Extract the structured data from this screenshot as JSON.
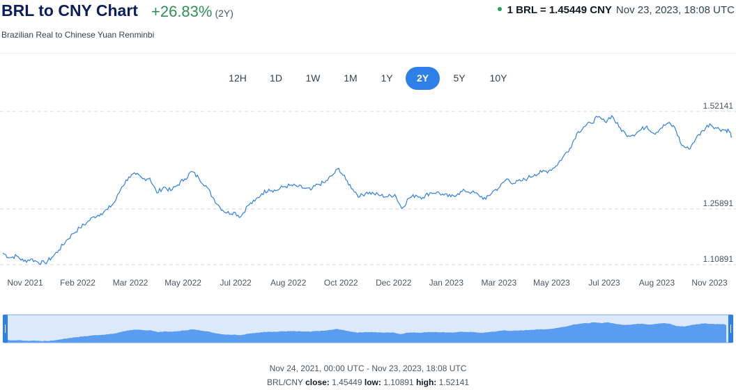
{
  "header": {
    "title": "BRL to CNY Chart",
    "change": "+26.83%",
    "change_period": "(2Y)",
    "subtitle": "Brazilian Real to Chinese Yuan Renminbi",
    "rate_pair": "1 BRL = 1.45449 CNY",
    "rate_time": "Nov 23, 2023, 18:08 UTC",
    "rate_dot_color": "#22a55b"
  },
  "tabs": [
    {
      "label": "12H",
      "active": false
    },
    {
      "label": "1D",
      "active": false
    },
    {
      "label": "1W",
      "active": false
    },
    {
      "label": "1M",
      "active": false
    },
    {
      "label": "1Y",
      "active": false
    },
    {
      "label": "2Y",
      "active": true
    },
    {
      "label": "5Y",
      "active": false
    },
    {
      "label": "10Y",
      "active": false
    }
  ],
  "footer": {
    "range": "Nov 24, 2021, 00:00 UTC - Nov 23, 2023, 18:08 UTC",
    "pair": "BRL/CNY",
    "close_label": "close:",
    "close": "1.45449",
    "low_label": "low:",
    "low": "1.10891",
    "high_label": "high:",
    "high": "1.52141"
  },
  "colors": {
    "line": "#2f7fe8",
    "navigator_area": "#5a9cf0",
    "navigator_bg": "#dbe9fb",
    "accent": "#2f7fe8",
    "positive": "#2f8f5b"
  },
  "chart_data": {
    "type": "line",
    "title": "BRL to CNY Chart",
    "xlabel": "",
    "ylabel": "",
    "x_ticks": [
      "Nov 2021",
      "Feb 2022",
      "Mar 2022",
      "May 2022",
      "Jul 2022",
      "Aug 2022",
      "Oct 2022",
      "Dec 2022",
      "Jan 2023",
      "Mar 2023",
      "May 2023",
      "Jul 2023",
      "Aug 2023",
      "Nov 2023"
    ],
    "y_ticks": [
      "1.52141",
      "1.25891",
      "1.10891"
    ],
    "ylim": [
      1.10891,
      1.52141
    ],
    "grid": true,
    "series": [
      {
        "values": [
          [
            "2021-11-24",
            1.14
          ],
          [
            "2021-12-01",
            1.128
          ],
          [
            "2021-12-08",
            1.132
          ],
          [
            "2021-12-15",
            1.118
          ],
          [
            "2021-12-22",
            1.124
          ],
          [
            "2021-12-29",
            1.116
          ],
          [
            "2022-01-05",
            1.113
          ],
          [
            "2022-01-12",
            1.128
          ],
          [
            "2022-01-19",
            1.148
          ],
          [
            "2022-01-26",
            1.172
          ],
          [
            "2022-02-02",
            1.192
          ],
          [
            "2022-02-09",
            1.208
          ],
          [
            "2022-02-16",
            1.222
          ],
          [
            "2022-02-23",
            1.238
          ],
          [
            "2022-03-02",
            1.246
          ],
          [
            "2022-03-09",
            1.258
          ],
          [
            "2022-03-16",
            1.278
          ],
          [
            "2022-03-23",
            1.318
          ],
          [
            "2022-03-30",
            1.345
          ],
          [
            "2022-04-06",
            1.352
          ],
          [
            "2022-04-13",
            1.34
          ],
          [
            "2022-04-20",
            1.342
          ],
          [
            "2022-04-27",
            1.302
          ],
          [
            "2022-05-04",
            1.318
          ],
          [
            "2022-05-11",
            1.308
          ],
          [
            "2022-05-18",
            1.324
          ],
          [
            "2022-05-25",
            1.34
          ],
          [
            "2022-06-01",
            1.36
          ],
          [
            "2022-06-08",
            1.342
          ],
          [
            "2022-06-15",
            1.322
          ],
          [
            "2022-06-22",
            1.29
          ],
          [
            "2022-06-29",
            1.264
          ],
          [
            "2022-07-06",
            1.248
          ],
          [
            "2022-07-13",
            1.25
          ],
          [
            "2022-07-20",
            1.238
          ],
          [
            "2022-07-27",
            1.268
          ],
          [
            "2022-08-03",
            1.28
          ],
          [
            "2022-08-10",
            1.3
          ],
          [
            "2022-08-17",
            1.312
          ],
          [
            "2022-08-24",
            1.308
          ],
          [
            "2022-08-31",
            1.318
          ],
          [
            "2022-09-07",
            1.322
          ],
          [
            "2022-09-14",
            1.32
          ],
          [
            "2022-09-21",
            1.315
          ],
          [
            "2022-09-28",
            1.31
          ],
          [
            "2022-10-05",
            1.325
          ],
          [
            "2022-10-12",
            1.33
          ],
          [
            "2022-10-19",
            1.348
          ],
          [
            "2022-10-26",
            1.368
          ],
          [
            "2022-11-02",
            1.338
          ],
          [
            "2022-11-09",
            1.312
          ],
          [
            "2022-11-16",
            1.292
          ],
          [
            "2022-11-23",
            1.304
          ],
          [
            "2022-11-30",
            1.3
          ],
          [
            "2022-12-07",
            1.295
          ],
          [
            "2022-12-14",
            1.292
          ],
          [
            "2022-12-21",
            1.298
          ],
          [
            "2022-12-28",
            1.26
          ],
          [
            "2023-01-04",
            1.288
          ],
          [
            "2023-01-11",
            1.296
          ],
          [
            "2023-01-18",
            1.29
          ],
          [
            "2023-01-25",
            1.302
          ],
          [
            "2023-02-01",
            1.304
          ],
          [
            "2023-02-08",
            1.296
          ],
          [
            "2023-02-15",
            1.292
          ],
          [
            "2023-02-22",
            1.3
          ],
          [
            "2023-03-01",
            1.308
          ],
          [
            "2023-03-08",
            1.304
          ],
          [
            "2023-03-15",
            1.296
          ],
          [
            "2023-03-22",
            1.285
          ],
          [
            "2023-03-29",
            1.306
          ],
          [
            "2023-04-05",
            1.318
          ],
          [
            "2023-04-12",
            1.34
          ],
          [
            "2023-04-19",
            1.328
          ],
          [
            "2023-04-26",
            1.334
          ],
          [
            "2023-05-03",
            1.342
          ],
          [
            "2023-05-10",
            1.352
          ],
          [
            "2023-05-17",
            1.358
          ],
          [
            "2023-05-24",
            1.362
          ],
          [
            "2023-05-31",
            1.374
          ],
          [
            "2023-06-07",
            1.398
          ],
          [
            "2023-06-14",
            1.422
          ],
          [
            "2023-06-21",
            1.462
          ],
          [
            "2023-06-28",
            1.48
          ],
          [
            "2023-07-05",
            1.49
          ],
          [
            "2023-07-12",
            1.506
          ],
          [
            "2023-07-19",
            1.494
          ],
          [
            "2023-07-26",
            1.51
          ],
          [
            "2023-08-02",
            1.48
          ],
          [
            "2023-08-09",
            1.46
          ],
          [
            "2023-08-16",
            1.458
          ],
          [
            "2023-08-23",
            1.47
          ],
          [
            "2023-08-30",
            1.482
          ],
          [
            "2023-09-06",
            1.462
          ],
          [
            "2023-09-13",
            1.476
          ],
          [
            "2023-09-20",
            1.49
          ],
          [
            "2023-09-27",
            1.478
          ],
          [
            "2023-10-04",
            1.43
          ],
          [
            "2023-10-11",
            1.42
          ],
          [
            "2023-10-18",
            1.448
          ],
          [
            "2023-10-25",
            1.47
          ],
          [
            "2023-11-01",
            1.488
          ],
          [
            "2023-11-08",
            1.476
          ],
          [
            "2023-11-15",
            1.472
          ],
          [
            "2023-11-20",
            1.47
          ],
          [
            "2023-11-23",
            1.45449
          ]
        ]
      }
    ]
  }
}
